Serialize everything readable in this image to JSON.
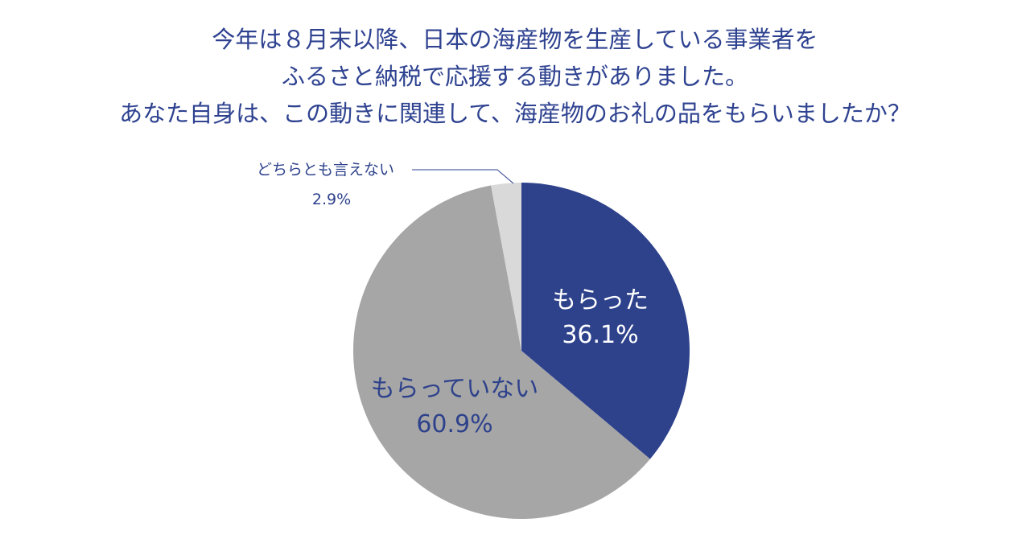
{
  "chart_data": {
    "type": "pie",
    "title_lines": [
      "今年は８月末以降、日本の海産物を生産している事業者を",
      "ふるさと納税で応援する動きがありました。",
      "あなた自身は、この動きに関連して、海産物のお礼の品をもらいましたか？"
    ],
    "slices": [
      {
        "label": "もらった",
        "percent_label": "36.1%",
        "value": 36.1,
        "color": "#2e428c",
        "text_color": "#ffffff"
      },
      {
        "label": "もらっていない",
        "percent_label": "60.9%",
        "value": 60.9,
        "color": "#a6a6a6",
        "text_color": "#2e428c"
      },
      {
        "label": "どちらとも言えない",
        "percent_label": "2.9%",
        "value": 2.9,
        "color": "#d9d9d9",
        "text_color": "#2e428c"
      }
    ],
    "start_angle": "12 o'clock",
    "direction": "clockwise",
    "legend": "none"
  }
}
